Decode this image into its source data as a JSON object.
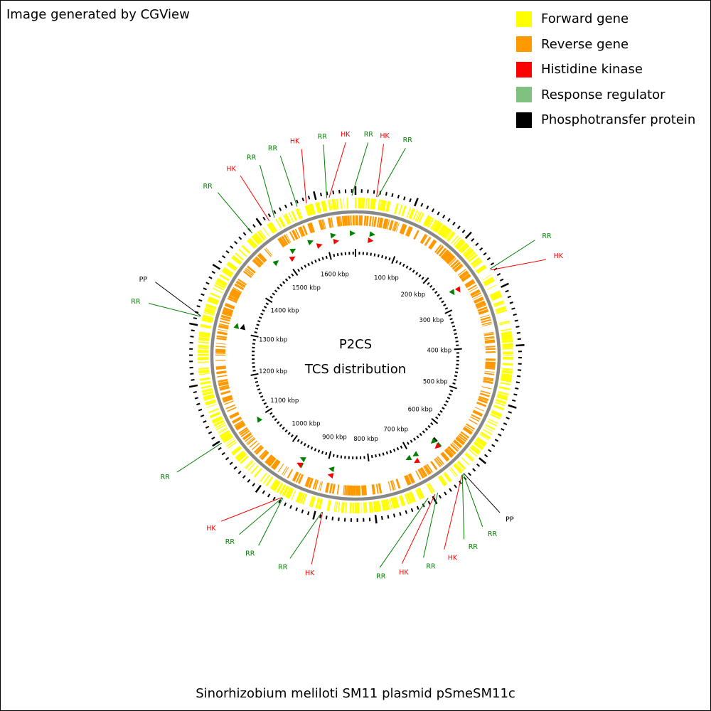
{
  "header": {
    "credit": "Image generated by CGView"
  },
  "legend": [
    {
      "label": "Forward gene",
      "color": "#ffff00"
    },
    {
      "label": "Reverse gene",
      "color": "#ff9900"
    },
    {
      "label": "Histidine kinase",
      "color": "#ff0000"
    },
    {
      "label": "Response regulator",
      "color": "#80c080"
    },
    {
      "label": "Phosphotransfer protein",
      "color": "#000000"
    }
  ],
  "map": {
    "title_line1": "P2CS",
    "title_line2": "TCS distribution",
    "caption": "Sinorhizobium meliloti SM11 plasmid pSmeSM11c",
    "colors": {
      "forward": "#ffff00",
      "reverse": "#ff9900",
      "backbone": "#888888",
      "hk": "#ff0000",
      "rr": "#008000",
      "pp": "#000000"
    },
    "sequence_length_kbp": 1666,
    "tick_labels": [
      {
        "kbp": 100,
        "text": "100 kbp"
      },
      {
        "kbp": 200,
        "text": "200 kbp"
      },
      {
        "kbp": 300,
        "text": "300 kbp"
      },
      {
        "kbp": 400,
        "text": "400 kbp"
      },
      {
        "kbp": 500,
        "text": "500 kbp"
      },
      {
        "kbp": 600,
        "text": "600 kbp"
      },
      {
        "kbp": 700,
        "text": "700 kbp"
      },
      {
        "kbp": 800,
        "text": "800 kbp"
      },
      {
        "kbp": 900,
        "text": "900 kbp"
      },
      {
        "kbp": 1000,
        "text": "1000 kbp"
      },
      {
        "kbp": 1100,
        "text": "1100 kbp"
      },
      {
        "kbp": 1200,
        "text": "1200 kbp"
      },
      {
        "kbp": 1300,
        "text": "1300 kbp"
      },
      {
        "kbp": 1400,
        "text": "1400 kbp"
      },
      {
        "kbp": 1500,
        "text": "1500 kbp"
      },
      {
        "kbp": 1600,
        "text": "1600 kbp"
      }
    ],
    "features": [
      {
        "kbp": 1567,
        "type": "RR",
        "label": "RR"
      },
      {
        "kbp": 1583,
        "type": "HK",
        "label": "HK"
      },
      {
        "kbp": 1618,
        "type": "RR",
        "label": "RR"
      },
      {
        "kbp": 1622,
        "type": "HK",
        "label": "HK"
      },
      {
        "kbp": 1660,
        "type": "RR",
        "label": "RR"
      },
      {
        "kbp": 35,
        "type": "HK",
        "label": "HK"
      },
      {
        "kbp": 37,
        "type": "RR",
        "label": "RR"
      },
      {
        "kbp": 265,
        "type": "RR",
        "label": "RR"
      },
      {
        "kbp": 267,
        "type": "HK",
        "label": "HK"
      },
      {
        "kbp": 636,
        "type": "PP",
        "label": "PP"
      },
      {
        "kbp": 637,
        "type": "RR",
        "label": "RR"
      },
      {
        "kbp": 639,
        "type": "RR",
        "label": "RR"
      },
      {
        "kbp": 640,
        "type": "HK",
        "label": "HK"
      },
      {
        "kbp": 690,
        "type": "RR",
        "label": "RR"
      },
      {
        "kbp": 695,
        "type": "HK",
        "label": "HK"
      },
      {
        "kbp": 708,
        "type": "RR",
        "label": "RR"
      },
      {
        "kbp": 888,
        "type": "HK",
        "label": "HK"
      },
      {
        "kbp": 889,
        "type": "RR",
        "label": "RR"
      },
      {
        "kbp": 958,
        "type": "RR",
        "label": "RR"
      },
      {
        "kbp": 959,
        "type": "RR",
        "label": "RR"
      },
      {
        "kbp": 960,
        "type": "HK",
        "label": "HK"
      },
      {
        "kbp": 1096,
        "type": "RR",
        "label": "RR"
      },
      {
        "kbp": 1315,
        "type": "RR",
        "label": "RR"
      },
      {
        "kbp": 1316,
        "type": "PP",
        "label": "PP"
      },
      {
        "kbp": 1480,
        "type": "RR",
        "label": "RR"
      },
      {
        "kbp": 1515,
        "type": "HK",
        "label": "HK"
      },
      {
        "kbp": 1525,
        "type": "RR",
        "label": "RR"
      }
    ]
  }
}
